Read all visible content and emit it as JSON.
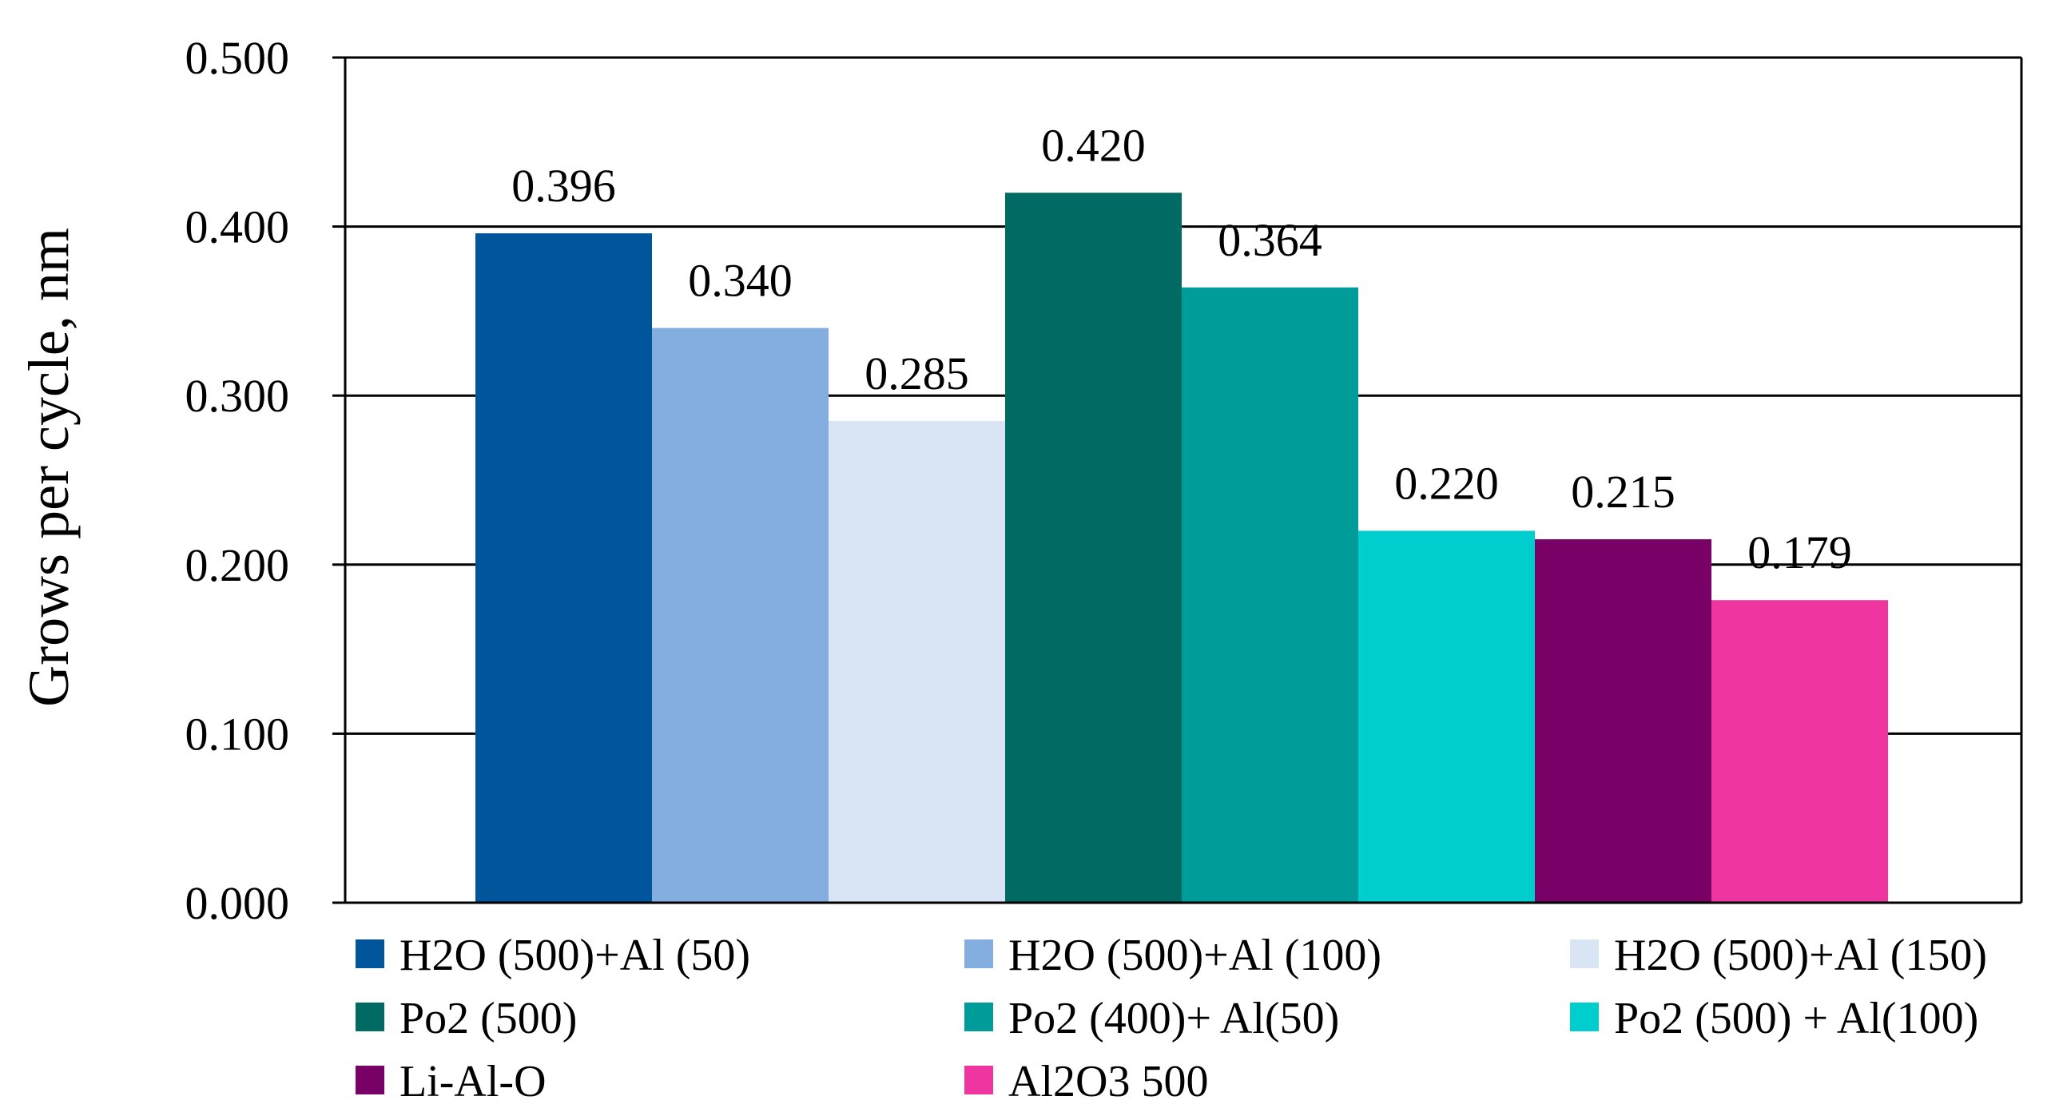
{
  "chart_data": {
    "type": "bar",
    "ylabel": "Grows per cycle, nm",
    "ylim": [
      0,
      0.5
    ],
    "yticks": [
      "0.000",
      "0.100",
      "0.200",
      "0.300",
      "0.400",
      "0.500"
    ],
    "grid": true,
    "legend_position": "bottom",
    "series": [
      {
        "name": "H2O (500)+Al (50)",
        "value": 0.396,
        "label": "0.396",
        "color": "#00559B"
      },
      {
        "name": "H2O (500)+Al (100)",
        "value": 0.34,
        "label": "0.340",
        "color": "#84AEDF"
      },
      {
        "name": "H2O (500)+Al (150)",
        "value": 0.285,
        "label": "0.285",
        "color": "#D9E4F4"
      },
      {
        "name": "Po2 (500)",
        "value": 0.42,
        "label": "0.420",
        "color": "#006A63"
      },
      {
        "name": "Po2 (400)+ Al(50)",
        "value": 0.364,
        "label": "0.364",
        "color": "#009C99"
      },
      {
        "name": "Po2 (500) + Al(100)",
        "value": 0.22,
        "label": "0.220",
        "color": "#00CECE"
      },
      {
        "name": "Li-Al-O",
        "value": 0.215,
        "label": "0.215",
        "color": "#780066"
      },
      {
        "name": "Al2O3 500",
        "value": 0.179,
        "label": "0.179",
        "color": "#EE35A0"
      }
    ]
  }
}
